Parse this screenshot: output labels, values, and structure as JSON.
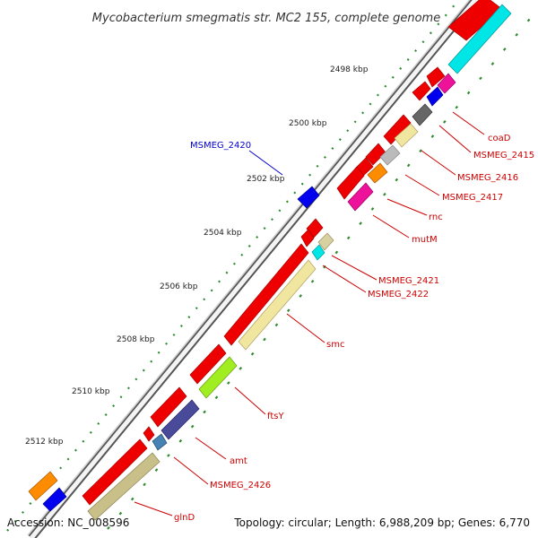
{
  "title": "Mycobacterium smegmatis str. MC2 155, complete genome",
  "accession": "Accession: NC_008596",
  "summary": "Topology: circular; Length: 6,988,209 bp; Genes: 6,770",
  "kbp_labels": [
    "2498 kbp",
    "2500 kbp",
    "2502 kbp",
    "2504 kbp",
    "2506 kbp",
    "2508 kbp",
    "2510 kbp",
    "2512 kbp"
  ],
  "gene_labels": {
    "coaD": "coaD",
    "MSMEG_2415": "MSMEG_2415",
    "MSMEG_2416": "MSMEG_2416",
    "MSMEG_2417": "MSMEG_2417",
    "rnc": "rnc",
    "mutM": "mutM",
    "MSMEG_2420": "MSMEG_2420",
    "MSMEG_2421": "MSMEG_2421",
    "MSMEG_2422": "MSMEG_2422",
    "smc": "smc",
    "ftsY": "ftsY",
    "amt": "amt",
    "MSMEG_2426": "MSMEG_2426",
    "glnD": "glnD"
  },
  "colors": {
    "cds_forward": "#ee0000",
    "label_red": "#cc0000",
    "label_blue": "#0000cc",
    "backbone": "#888888",
    "tick_green": "#2e8b2e"
  }
}
